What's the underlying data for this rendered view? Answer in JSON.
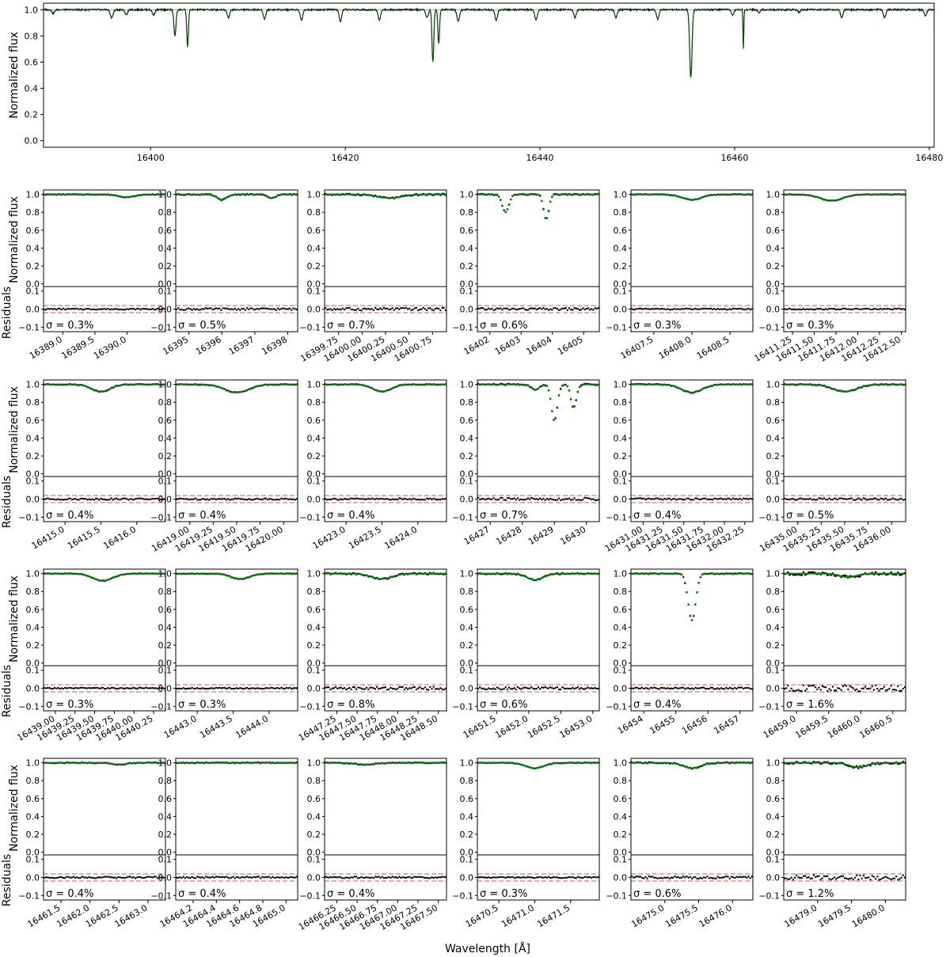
{
  "figure": {
    "ylabel_flux": "Normalized flux",
    "ylabel_resid": "Residuals",
    "xlabel": "Wavelength [Å]",
    "series_colors": {
      "observed": "#000000",
      "model": "#0a7d0a",
      "sigma_band": "#e05050"
    }
  },
  "chart_data": {
    "type": "scatter",
    "overview": {
      "xlim": [
        16389,
        16480.5
      ],
      "ylim": [
        -0.05,
        1.05
      ],
      "xticks": [
        "16400",
        "16420",
        "16440",
        "16460",
        "16480"
      ],
      "yticks": [
        "0.0",
        "0.2",
        "0.4",
        "0.6",
        "0.8",
        "1.0"
      ],
      "lines": [
        {
          "center": 16390.0,
          "depth": 0.03,
          "width": 0.3
        },
        {
          "center": 16396.0,
          "depth": 0.06,
          "width": 0.35
        },
        {
          "center": 16397.5,
          "depth": 0.04,
          "width": 0.3
        },
        {
          "center": 16400.3,
          "depth": 0.04,
          "width": 0.3
        },
        {
          "center": 16402.5,
          "depth": 0.2,
          "width": 0.25
        },
        {
          "center": 16403.8,
          "depth": 0.28,
          "width": 0.2
        },
        {
          "center": 16408.0,
          "depth": 0.06,
          "width": 0.3
        },
        {
          "center": 16411.7,
          "depth": 0.07,
          "width": 0.3
        },
        {
          "center": 16415.5,
          "depth": 0.08,
          "width": 0.3
        },
        {
          "center": 16419.5,
          "depth": 0.09,
          "width": 0.3
        },
        {
          "center": 16423.5,
          "depth": 0.08,
          "width": 0.3
        },
        {
          "center": 16428.4,
          "depth": 0.06,
          "width": 0.3
        },
        {
          "center": 16429.0,
          "depth": 0.4,
          "width": 0.22
        },
        {
          "center": 16429.6,
          "depth": 0.26,
          "width": 0.2
        },
        {
          "center": 16431.6,
          "depth": 0.09,
          "width": 0.3
        },
        {
          "center": 16435.5,
          "depth": 0.08,
          "width": 0.3
        },
        {
          "center": 16439.6,
          "depth": 0.08,
          "width": 0.3
        },
        {
          "center": 16443.6,
          "depth": 0.06,
          "width": 0.3
        },
        {
          "center": 16447.8,
          "depth": 0.06,
          "width": 0.3
        },
        {
          "center": 16452.1,
          "depth": 0.07,
          "width": 0.3
        },
        {
          "center": 16455.5,
          "depth": 0.52,
          "width": 0.28
        },
        {
          "center": 16459.8,
          "depth": 0.04,
          "width": 0.3
        },
        {
          "center": 16460.9,
          "depth": 0.3,
          "width": 0.1
        },
        {
          "center": 16462.5,
          "depth": 0.02,
          "width": 0.3
        },
        {
          "center": 16466.6,
          "depth": 0.02,
          "width": 0.3
        },
        {
          "center": 16471.0,
          "depth": 0.06,
          "width": 0.3
        },
        {
          "center": 16475.4,
          "depth": 0.06,
          "width": 0.3
        },
        {
          "center": 16479.6,
          "depth": 0.05,
          "width": 0.3
        }
      ]
    },
    "panel_yticks_flux": [
      "0.0",
      "0.2",
      "0.4",
      "0.6",
      "0.8",
      "1.0"
    ],
    "panel_yticks_resid": [
      "−0.1",
      "0.0",
      "0.1"
    ],
    "sigma_band": 0.02,
    "panels": [
      {
        "sigma": "σ = 0.3%",
        "xlim": [
          16388.7,
          16390.6
        ],
        "xticks": [
          16389.0,
          16389.5,
          16390.0
        ],
        "tick_labels": [
          "16389.0",
          "16389.5",
          "16390.0"
        ]
      },
      {
        "sigma": "σ = 0.5%",
        "xlim": [
          16394.6,
          16398.3
        ],
        "xticks": [
          16395,
          16396,
          16397,
          16398
        ],
        "tick_labels": [
          "16395",
          "16396",
          "16397",
          "16398"
        ]
      },
      {
        "sigma": "σ = 0.7%",
        "xlim": [
          16399.6,
          16400.9
        ],
        "xticks": [
          16399.75,
          16400.0,
          16400.25,
          16400.5,
          16400.75
        ],
        "tick_labels": [
          "16399.75",
          "16400.00",
          "16400.25",
          "16400.50",
          "16400.75"
        ]
      },
      {
        "sigma": "σ = 0.6%",
        "xlim": [
          16401.6,
          16405.5
        ],
        "xticks": [
          16402,
          16403,
          16404,
          16405
        ],
        "tick_labels": [
          "16402",
          "16403",
          "16404",
          "16405"
        ]
      },
      {
        "sigma": "σ = 0.3%",
        "xlim": [
          16407.2,
          16408.8
        ],
        "xticks": [
          16407.5,
          16408.0,
          16408.5
        ],
        "tick_labels": [
          "16407.5",
          "16408.0",
          "16408.5"
        ]
      },
      {
        "sigma": "σ = 0.3%",
        "xlim": [
          16411.15,
          16412.55
        ],
        "xticks": [
          16411.25,
          16411.5,
          16411.75,
          16412.0,
          16412.25,
          16412.5
        ],
        "tick_labels": [
          "16411.25",
          "16411.50",
          "16411.75",
          "16412.00",
          "16412.25",
          "16412.50"
        ]
      },
      {
        "sigma": "σ = 0.4%",
        "xlim": [
          16414.7,
          16416.4
        ],
        "xticks": [
          16415.0,
          16415.5,
          16416.0
        ],
        "tick_labels": [
          "16415.0",
          "16415.5",
          "16416.0"
        ]
      },
      {
        "sigma": "σ = 0.4%",
        "xlim": [
          16418.85,
          16420.15
        ],
        "xticks": [
          16419.0,
          16419.25,
          16419.5,
          16419.75,
          16420.0
        ],
        "tick_labels": [
          "16419.00",
          "16419.25",
          "16419.50",
          "16419.75",
          "16420.00"
        ]
      },
      {
        "sigma": "σ = 0.4%",
        "xlim": [
          16422.7,
          16424.4
        ],
        "xticks": [
          16423.0,
          16423.5,
          16424.0
        ],
        "tick_labels": [
          "16423.0",
          "16423.5",
          "16424.0"
        ]
      },
      {
        "sigma": "σ = 0.7%",
        "xlim": [
          16426.6,
          16430.4
        ],
        "xticks": [
          16427,
          16428,
          16429,
          16430
        ],
        "tick_labels": [
          "16427",
          "16428",
          "16429",
          "16430"
        ]
      },
      {
        "sigma": "σ = 0.4%",
        "xlim": [
          16430.85,
          16432.35
        ],
        "xticks": [
          16431.0,
          16431.25,
          16431.5,
          16431.75,
          16432.0,
          16432.25
        ],
        "tick_labels": [
          "16431.00",
          "16431.25",
          "16431.50",
          "16431.75",
          "16432.00",
          "16432.25"
        ]
      },
      {
        "sigma": "σ = 0.5%",
        "xlim": [
          16434.85,
          16436.15
        ],
        "xticks": [
          16435.0,
          16435.25,
          16435.5,
          16435.75,
          16436.0
        ],
        "tick_labels": [
          "16435.00",
          "16435.25",
          "16435.50",
          "16435.75",
          "16436.00"
        ]
      },
      {
        "sigma": "σ = 0.3%",
        "xlim": [
          16438.85,
          16440.4
        ],
        "xticks": [
          16439.0,
          16439.25,
          16439.5,
          16439.75,
          16440.0,
          16440.25
        ],
        "tick_labels": [
          "16439.00",
          "16439.25",
          "16439.50",
          "16439.75",
          "16440.00",
          "16440.25"
        ]
      },
      {
        "sigma": "σ = 0.3%",
        "xlim": [
          16442.7,
          16444.4
        ],
        "xticks": [
          16443.0,
          16443.5,
          16444.0
        ],
        "tick_labels": [
          "16443.0",
          "16443.5",
          "16444.0"
        ]
      },
      {
        "sigma": "σ = 0.8%",
        "xlim": [
          16447.1,
          16448.6
        ],
        "xticks": [
          16447.25,
          16447.5,
          16447.75,
          16448.0,
          16448.25,
          16448.5
        ],
        "tick_labels": [
          "16447.25",
          "16447.50",
          "16447.75",
          "16448.00",
          "16448.25",
          "16448.50"
        ]
      },
      {
        "sigma": "σ = 0.6%",
        "xlim": [
          16451.2,
          16453.1
        ],
        "xticks": [
          16451.5,
          16452.0,
          16452.5,
          16453.0
        ],
        "tick_labels": [
          "16451.5",
          "16452.0",
          "16452.5",
          "16453.0"
        ]
      },
      {
        "sigma": "σ = 0.4%",
        "xlim": [
          16453.6,
          16457.4
        ],
        "xticks": [
          16454,
          16455,
          16456,
          16457
        ],
        "tick_labels": [
          "16454",
          "16455",
          "16456",
          "16457"
        ]
      },
      {
        "sigma": "σ = 1.6%",
        "xlim": [
          16458.8,
          16460.7
        ],
        "xticks": [
          16459.0,
          16459.5,
          16460.0,
          16460.5
        ],
        "tick_labels": [
          "16459.0",
          "16459.5",
          "16460.0",
          "16460.5"
        ]
      },
      {
        "sigma": "σ = 0.4%",
        "xlim": [
          16461.2,
          16463.3
        ],
        "xticks": [
          16461.5,
          16462.0,
          16462.5,
          16463.0
        ],
        "tick_labels": [
          "16461.5",
          "16462.0",
          "16462.5",
          "16463.0"
        ]
      },
      {
        "sigma": "σ = 0.4%",
        "xlim": [
          16464.05,
          16465.1
        ],
        "xticks": [
          16464.2,
          16464.4,
          16464.6,
          16464.8,
          16465.0
        ],
        "tick_labels": [
          "16464.2",
          "16464.4",
          "16464.6",
          "16464.8",
          "16465.0"
        ]
      },
      {
        "sigma": "σ = 0.4%",
        "xlim": [
          16466.1,
          16467.6
        ],
        "xticks": [
          16466.25,
          16466.5,
          16466.75,
          16467.0,
          16467.25,
          16467.5
        ],
        "tick_labels": [
          "16466.25",
          "16466.50",
          "16466.75",
          "16467.00",
          "16467.25",
          "16467.50"
        ]
      },
      {
        "sigma": "σ = 0.3%",
        "xlim": [
          16470.2,
          16471.9
        ],
        "xticks": [
          16470.5,
          16471.0,
          16471.5
        ],
        "tick_labels": [
          "16470.5",
          "16471.0",
          "16471.5"
        ]
      },
      {
        "sigma": "σ = 0.6%",
        "xlim": [
          16474.5,
          16476.3
        ],
        "xticks": [
          16475.0,
          16475.5,
          16476.0
        ],
        "tick_labels": [
          "16475.0",
          "16475.5",
          "16476.0"
        ]
      },
      {
        "sigma": "σ = 1.2%",
        "xlim": [
          16478.5,
          16480.3
        ],
        "xticks": [
          16479.0,
          16479.5,
          16480.0
        ],
        "tick_labels": [
          "16479.0",
          "16479.5",
          "16480.0"
        ]
      }
    ]
  }
}
